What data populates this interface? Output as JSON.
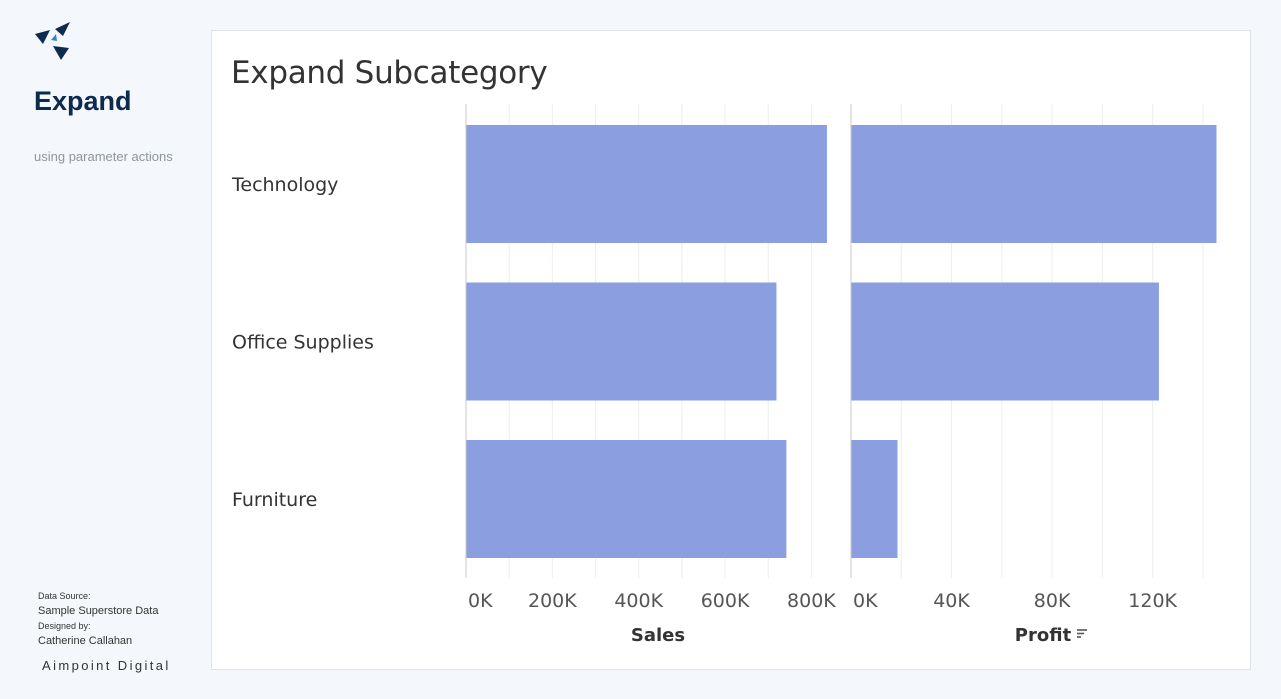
{
  "sidebar": {
    "title": "Expand",
    "subtitle": "using parameter actions",
    "data_source_label": "Data Source:",
    "data_source_value": "Sample Superstore Data",
    "designed_by_label": "Designed by:",
    "designed_by_value": "Catherine Callahan",
    "brand": "Aimpoint Digital"
  },
  "colors": {
    "bar": "#8a9ee0",
    "logo": "#0d2a4f",
    "logo_accent": "#3b82c4"
  },
  "icons": {
    "logo": "aimpoint-logo-icon",
    "sort": "sort-descending-icon"
  },
  "chart_data": {
    "type": "bar",
    "orientation": "horizontal",
    "title": "Expand Subcategory",
    "categories": [
      "Technology",
      "Office Supplies",
      "Furniture"
    ],
    "panels": [
      {
        "xlabel": "Sales",
        "values": [
          836000,
          719000,
          742000
        ],
        "xlim": [
          0,
          850000
        ],
        "ticks": [
          0,
          200000,
          400000,
          600000,
          800000
        ],
        "tick_labels": [
          "0K",
          "200K",
          "400K",
          "600K",
          "800K"
        ]
      },
      {
        "xlabel": "Profit",
        "values": [
          145400,
          122500,
          18500
        ],
        "xlim": [
          0,
          146000
        ],
        "ticks": [
          0,
          40000,
          80000,
          120000
        ],
        "tick_labels": [
          "0K",
          "40K",
          "80K",
          "120K"
        ],
        "sorted": true
      }
    ],
    "grid": true
  }
}
